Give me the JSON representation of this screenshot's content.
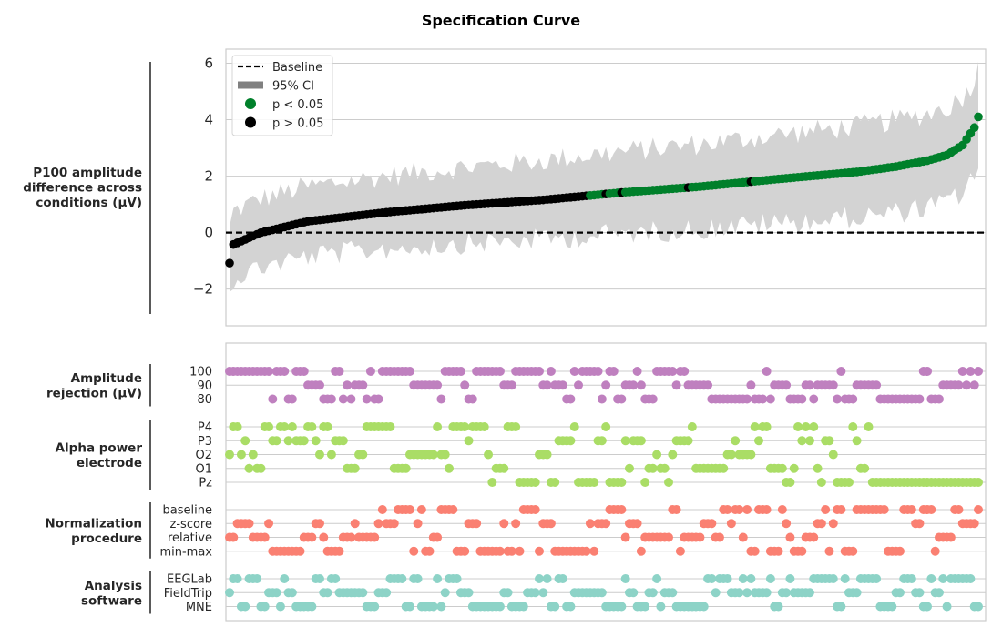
{
  "chart_data": {
    "type": "scatter",
    "title": "Specification Curve",
    "n_specifications": 192,
    "top_panel": {
      "ylabel": [
        "P100 amplitude",
        "difference across",
        "conditions (μV)"
      ],
      "ylim": [
        -3.3,
        6.5
      ],
      "yticks": [
        6,
        4,
        2,
        0,
        -2
      ],
      "ytick_labels": [
        "6",
        "4",
        "2",
        "0",
        "−2"
      ],
      "baseline": 0,
      "grid": true,
      "curve": {
        "knots_rank": [
          0,
          1,
          8,
          20,
          40,
          60,
          80,
          100,
          120,
          140,
          160,
          170,
          178,
          183,
          187,
          190,
          191
        ],
        "knots_value": [
          -1.08,
          -0.42,
          0.0,
          0.4,
          0.72,
          0.97,
          1.16,
          1.42,
          1.63,
          1.9,
          2.15,
          2.34,
          2.55,
          2.75,
          3.1,
          3.72,
          4.1
        ]
      },
      "ci_halfwidth_range": [
        0.9,
        1.7
      ],
      "significance": {
        "nonsig_up_to_rank": 91,
        "extra_nonsig_ranks": [
          96,
          100,
          117,
          133
        ]
      },
      "legend": {
        "position": "upper-left",
        "entries": [
          {
            "label": "Baseline",
            "kind": "dashed-line",
            "color": "#000000"
          },
          {
            "label": "95% CI",
            "kind": "patch",
            "color": "#808080"
          },
          {
            "label": "p < 0.05",
            "kind": "point",
            "color": "#00802b"
          },
          {
            "label": "p > 0.05",
            "kind": "point",
            "color": "#000000"
          }
        ]
      },
      "colors": {
        "ci": "#d3d3d3",
        "sig": "#00802b",
        "nonsig": "#000000",
        "baseline": "#000000"
      }
    },
    "bottom_panel": {
      "groups": [
        {
          "name": [
            "Amplitude",
            "rejection (μV)"
          ],
          "color": "#bf80bf",
          "levels": [
            "100",
            "90",
            "80"
          ]
        },
        {
          "name": [
            "Alpha power",
            "electrode"
          ],
          "color": "#aadd66",
          "levels": [
            "P4",
            "P3",
            "O2",
            "O1",
            "Pz"
          ]
        },
        {
          "name": [
            "Normalization",
            "procedure"
          ],
          "color": "#fa8072",
          "levels": [
            "baseline",
            "z-score",
            "relative",
            "min-max"
          ]
        },
        {
          "name": [
            "Analysis",
            "software"
          ],
          "color": "#8dd3c7",
          "levels": [
            "EEGLab",
            "FieldTrip",
            "MNE"
          ]
        }
      ],
      "note": "Each specification (x position) has exactly one active level per group; assignments are shown as colored dots."
    }
  }
}
